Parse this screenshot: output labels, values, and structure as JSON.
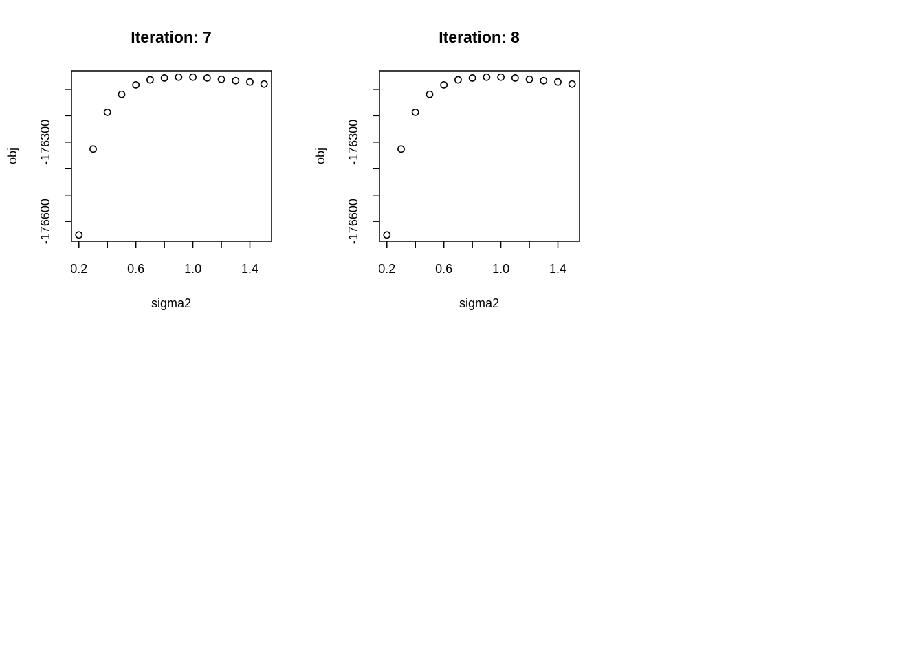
{
  "chart_data": [
    {
      "type": "scatter",
      "title": "Iteration: 7",
      "xlabel": "sigma2",
      "ylabel": "obj",
      "x": [
        0.2,
        0.3,
        0.4,
        0.5,
        0.6,
        0.7,
        0.8,
        0.9,
        1.0,
        1.1,
        1.2,
        1.3,
        1.4,
        1.5
      ],
      "y": [
        -176651,
        -176326,
        -176187,
        -176119,
        -176083,
        -176064,
        -176057,
        -176054,
        -176054,
        -176057,
        -176062,
        -176067,
        -176072,
        -176080
      ],
      "xlim": [
        0.148,
        1.552
      ],
      "ylim": [
        -176675,
        -176030
      ],
      "xticks": [
        0.2,
        0.4,
        0.6,
        0.8,
        1.0,
        1.2,
        1.4
      ],
      "xtick_labels": [
        "0.2",
        "",
        "0.6",
        "",
        "1.0",
        "",
        "1.4"
      ],
      "yticks": [
        -176600,
        -176500,
        -176400,
        -176300,
        -176200,
        -176100
      ],
      "ytick_labels": [
        "-176600",
        "",
        "",
        "-176300",
        "",
        ""
      ],
      "grid": false,
      "marker": "open-circle"
    },
    {
      "type": "scatter",
      "title": "Iteration: 8",
      "xlabel": "sigma2",
      "ylabel": "obj",
      "x": [
        0.2,
        0.3,
        0.4,
        0.5,
        0.6,
        0.7,
        0.8,
        0.9,
        1.0,
        1.1,
        1.2,
        1.3,
        1.4,
        1.5
      ],
      "y": [
        -176651,
        -176326,
        -176187,
        -176119,
        -176083,
        -176064,
        -176057,
        -176054,
        -176054,
        -176057,
        -176062,
        -176067,
        -176072,
        -176080
      ],
      "xlim": [
        0.148,
        1.552
      ],
      "ylim": [
        -176675,
        -176030
      ],
      "xticks": [
        0.2,
        0.4,
        0.6,
        0.8,
        1.0,
        1.2,
        1.4
      ],
      "xtick_labels": [
        "0.2",
        "",
        "0.6",
        "",
        "1.0",
        "",
        "1.4"
      ],
      "yticks": [
        -176600,
        -176500,
        -176400,
        -176300,
        -176200,
        -176100
      ],
      "ytick_labels": [
        "-176600",
        "",
        "",
        "-176300",
        "",
        ""
      ],
      "grid": false,
      "marker": "open-circle"
    }
  ]
}
